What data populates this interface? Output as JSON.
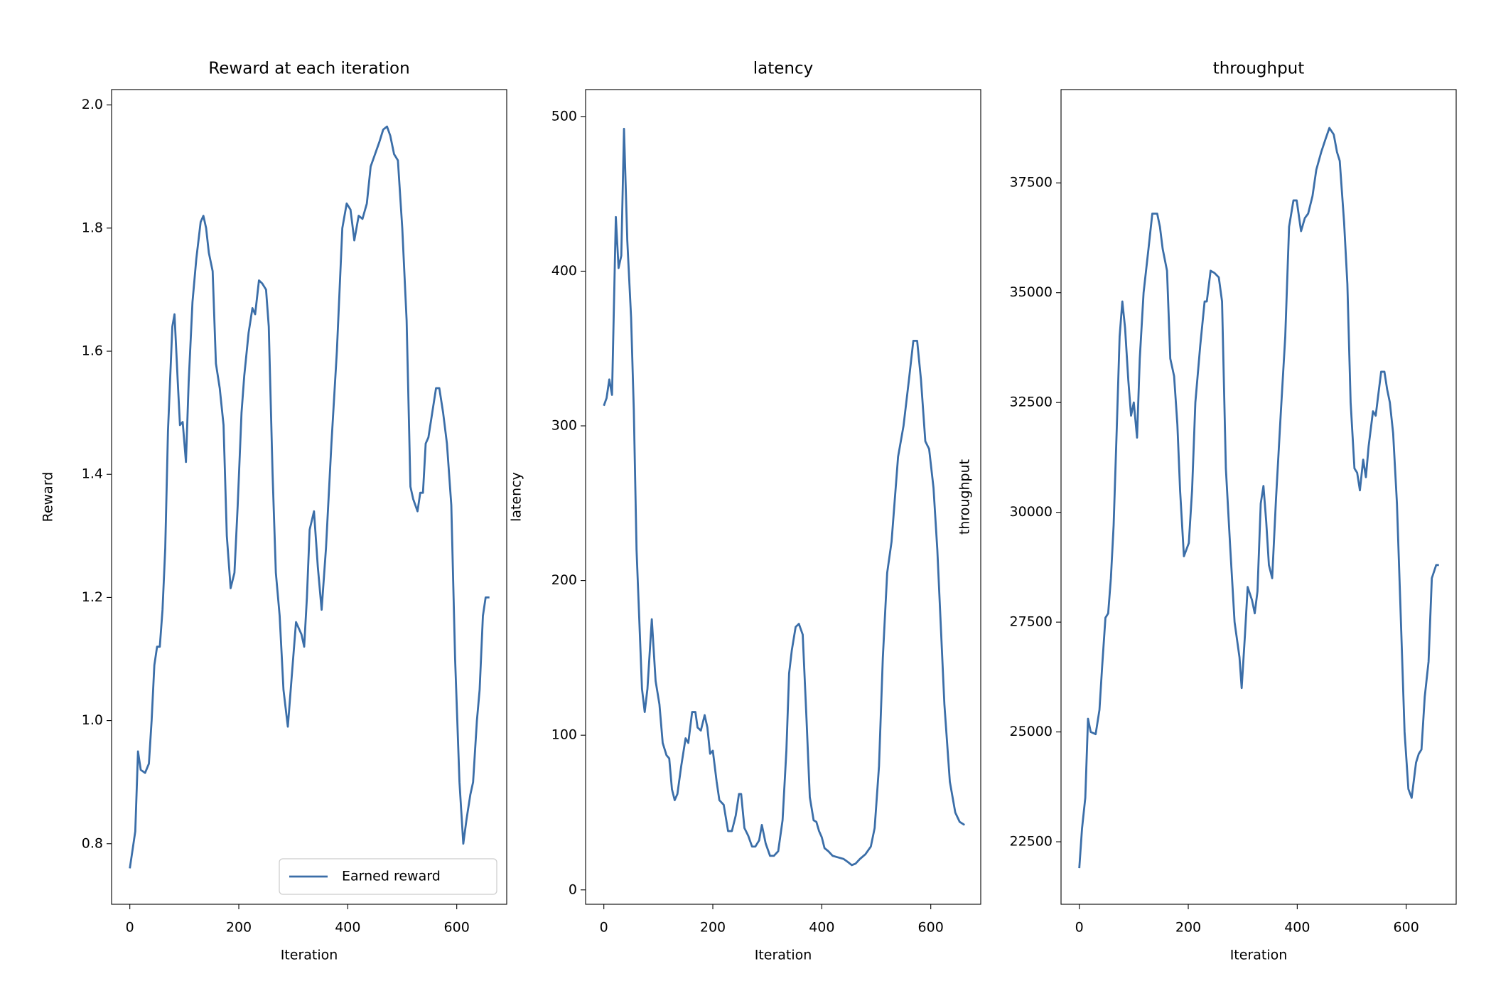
{
  "chart_data": [
    {
      "type": "line",
      "title": "Reward at each iteration",
      "x_label": "Iteration",
      "y_label": "Reward",
      "legend": "lower right",
      "x": [
        0,
        5,
        10,
        15,
        20,
        28,
        35,
        40,
        45,
        50,
        55,
        60,
        65,
        70,
        78,
        82,
        88,
        92,
        97,
        103,
        108,
        115,
        122,
        130,
        135,
        140,
        145,
        152,
        158,
        165,
        172,
        178,
        185,
        192,
        198,
        205,
        210,
        218,
        225,
        230,
        237,
        243,
        250,
        255,
        262,
        268,
        275,
        282,
        290,
        297,
        305,
        310,
        315,
        320,
        325,
        330,
        338,
        345,
        352,
        360,
        370,
        380,
        390,
        398,
        405,
        412,
        420,
        427,
        435,
        442,
        450,
        458,
        465,
        472,
        478,
        485,
        492,
        500,
        508,
        515,
        520,
        528,
        533,
        538,
        543,
        548,
        555,
        562,
        568,
        575,
        582,
        590,
        597,
        605,
        612,
        618,
        625,
        630,
        637,
        642,
        648,
        653,
        660
      ],
      "series": [
        {
          "name": "Earned reward",
          "color": "#3b6ea8",
          "values": [
            0.76,
            0.79,
            0.82,
            0.95,
            0.92,
            0.915,
            0.93,
            1.0,
            1.09,
            1.12,
            1.12,
            1.18,
            1.28,
            1.47,
            1.64,
            1.66,
            1.55,
            1.48,
            1.485,
            1.42,
            1.55,
            1.68,
            1.75,
            1.81,
            1.82,
            1.8,
            1.76,
            1.73,
            1.58,
            1.54,
            1.48,
            1.3,
            1.215,
            1.24,
            1.35,
            1.5,
            1.56,
            1.63,
            1.67,
            1.66,
            1.715,
            1.71,
            1.7,
            1.64,
            1.4,
            1.24,
            1.17,
            1.05,
            0.99,
            1.07,
            1.16,
            1.15,
            1.14,
            1.12,
            1.2,
            1.31,
            1.34,
            1.25,
            1.18,
            1.28,
            1.45,
            1.6,
            1.8,
            1.84,
            1.83,
            1.78,
            1.82,
            1.815,
            1.84,
            1.9,
            1.92,
            1.94,
            1.96,
            1.965,
            1.95,
            1.92,
            1.91,
            1.8,
            1.65,
            1.38,
            1.36,
            1.34,
            1.37,
            1.37,
            1.45,
            1.46,
            1.5,
            1.54,
            1.54,
            1.5,
            1.45,
            1.35,
            1.1,
            0.9,
            0.8,
            0.84,
            0.88,
            0.9,
            1.0,
            1.05,
            1.17,
            1.2,
            1.2
          ]
        }
      ],
      "xlim": [
        -33.5,
        691.7
      ],
      "xticks": [
        0,
        200,
        400,
        600
      ],
      "ylim": [
        0.7016,
        2.025
      ],
      "yticks": [
        0.8,
        {
          "value": 1,
          "label": "1.0"
        },
        1.2,
        1.4,
        1.6,
        1.8,
        {
          "value": 2,
          "label": "2.0"
        }
      ]
    },
    {
      "type": "line",
      "title": "latency",
      "x_label": "Iteration",
      "y_label": "latency",
      "color": "#3b6ea8",
      "x": [
        0,
        5,
        10,
        15,
        22,
        27,
        32,
        37,
        43,
        50,
        55,
        60,
        65,
        70,
        75,
        80,
        88,
        95,
        102,
        108,
        115,
        120,
        125,
        130,
        135,
        142,
        150,
        155,
        162,
        168,
        172,
        178,
        185,
        190,
        195,
        200,
        207,
        212,
        220,
        228,
        235,
        242,
        248,
        252,
        258,
        265,
        272,
        278,
        285,
        290,
        297,
        305,
        312,
        320,
        328,
        335,
        340,
        345,
        352,
        358,
        365,
        372,
        378,
        385,
        390,
        395,
        400,
        405,
        412,
        420,
        430,
        440,
        448,
        455,
        462,
        470,
        480,
        490,
        497,
        505,
        512,
        520,
        528,
        540,
        550,
        560,
        568,
        575,
        582,
        590,
        597,
        605,
        612,
        625,
        635,
        645,
        653,
        662
      ],
      "values": [
        313,
        318,
        330,
        320,
        435,
        402,
        410,
        492,
        420,
        370,
        310,
        220,
        175,
        130,
        115,
        130,
        175,
        135,
        120,
        95,
        87,
        85,
        65,
        58,
        62,
        80,
        98,
        95,
        115,
        115,
        105,
        103,
        113,
        105,
        88,
        90,
        70,
        58,
        55,
        38,
        38,
        48,
        62,
        62,
        40,
        35,
        28,
        28,
        32,
        42,
        30,
        22,
        22,
        25,
        45,
        90,
        140,
        155,
        170,
        172,
        165,
        110,
        60,
        45,
        44,
        38,
        34,
        27,
        25,
        22,
        21,
        20,
        18,
        16,
        17,
        20,
        23,
        28,
        40,
        80,
        150,
        205,
        225,
        280,
        300,
        330,
        355,
        355,
        330,
        290,
        285,
        260,
        220,
        120,
        70,
        50,
        44,
        42
      ],
      "xlim": [
        -33.5,
        691.7
      ],
      "xticks": [
        0,
        200,
        400,
        600
      ],
      "ylim": [
        -9.3,
        517.4
      ],
      "yticks": [
        0,
        100,
        200,
        300,
        400,
        500
      ]
    },
    {
      "type": "line",
      "title": "throughput",
      "x_label": "Iteration",
      "y_label": "throughput",
      "color": "#3b6ea8",
      "x": [
        0,
        5,
        11,
        16,
        21,
        30,
        37,
        42,
        48,
        53,
        58,
        63,
        69,
        74,
        79,
        84,
        90,
        95,
        100,
        106,
        111,
        118,
        127,
        134,
        143,
        148,
        153,
        161,
        167,
        174,
        180,
        185,
        192,
        201,
        207,
        213,
        222,
        230,
        234,
        241,
        248,
        256,
        262,
        269,
        277,
        285,
        294,
        298,
        304,
        309,
        317,
        322,
        327,
        333,
        338,
        343,
        348,
        354,
        361,
        370,
        378,
        385,
        393,
        399,
        407,
        414,
        420,
        428,
        435,
        444,
        452,
        459,
        467,
        473,
        478,
        486,
        492,
        498,
        505,
        510,
        515,
        521,
        526,
        531,
        539,
        544,
        549,
        554,
        560,
        565,
        570,
        576,
        583,
        589,
        597,
        604,
        610,
        618,
        623,
        628,
        634,
        641,
        647,
        655,
        660
      ],
      "values": [
        21900,
        22800,
        23500,
        25300,
        25000,
        24950,
        25500,
        26500,
        27600,
        27700,
        28500,
        29700,
        32000,
        34000,
        34800,
        34200,
        33000,
        32200,
        32500,
        31700,
        33500,
        35000,
        36000,
        36800,
        36800,
        36500,
        36000,
        35500,
        33500,
        33100,
        32000,
        30500,
        29000,
        29300,
        30500,
        32500,
        33800,
        34800,
        34800,
        35500,
        35450,
        35350,
        34800,
        31000,
        29200,
        27500,
        26700,
        26000,
        27200,
        28300,
        28000,
        27700,
        28200,
        30200,
        30600,
        29800,
        28800,
        28500,
        30300,
        32300,
        34000,
        36500,
        37100,
        37100,
        36400,
        36700,
        36800,
        37200,
        37800,
        38200,
        38500,
        38750,
        38600,
        38200,
        38000,
        36600,
        35200,
        32500,
        31000,
        30900,
        30500,
        31200,
        30800,
        31500,
        32300,
        32200,
        32700,
        33200,
        33200,
        32800,
        32500,
        31800,
        30200,
        28000,
        25000,
        23700,
        23500,
        24300,
        24500,
        24600,
        25800,
        26600,
        28500,
        28800,
        28800
      ],
      "xlim": [
        -33.5,
        691.7
      ],
      "xticks": [
        0,
        200,
        400,
        600
      ],
      "ylim": [
        21077,
        39624
      ],
      "yticks": [
        22500,
        25000,
        27500,
        30000,
        32500,
        35000,
        37500
      ]
    }
  ]
}
